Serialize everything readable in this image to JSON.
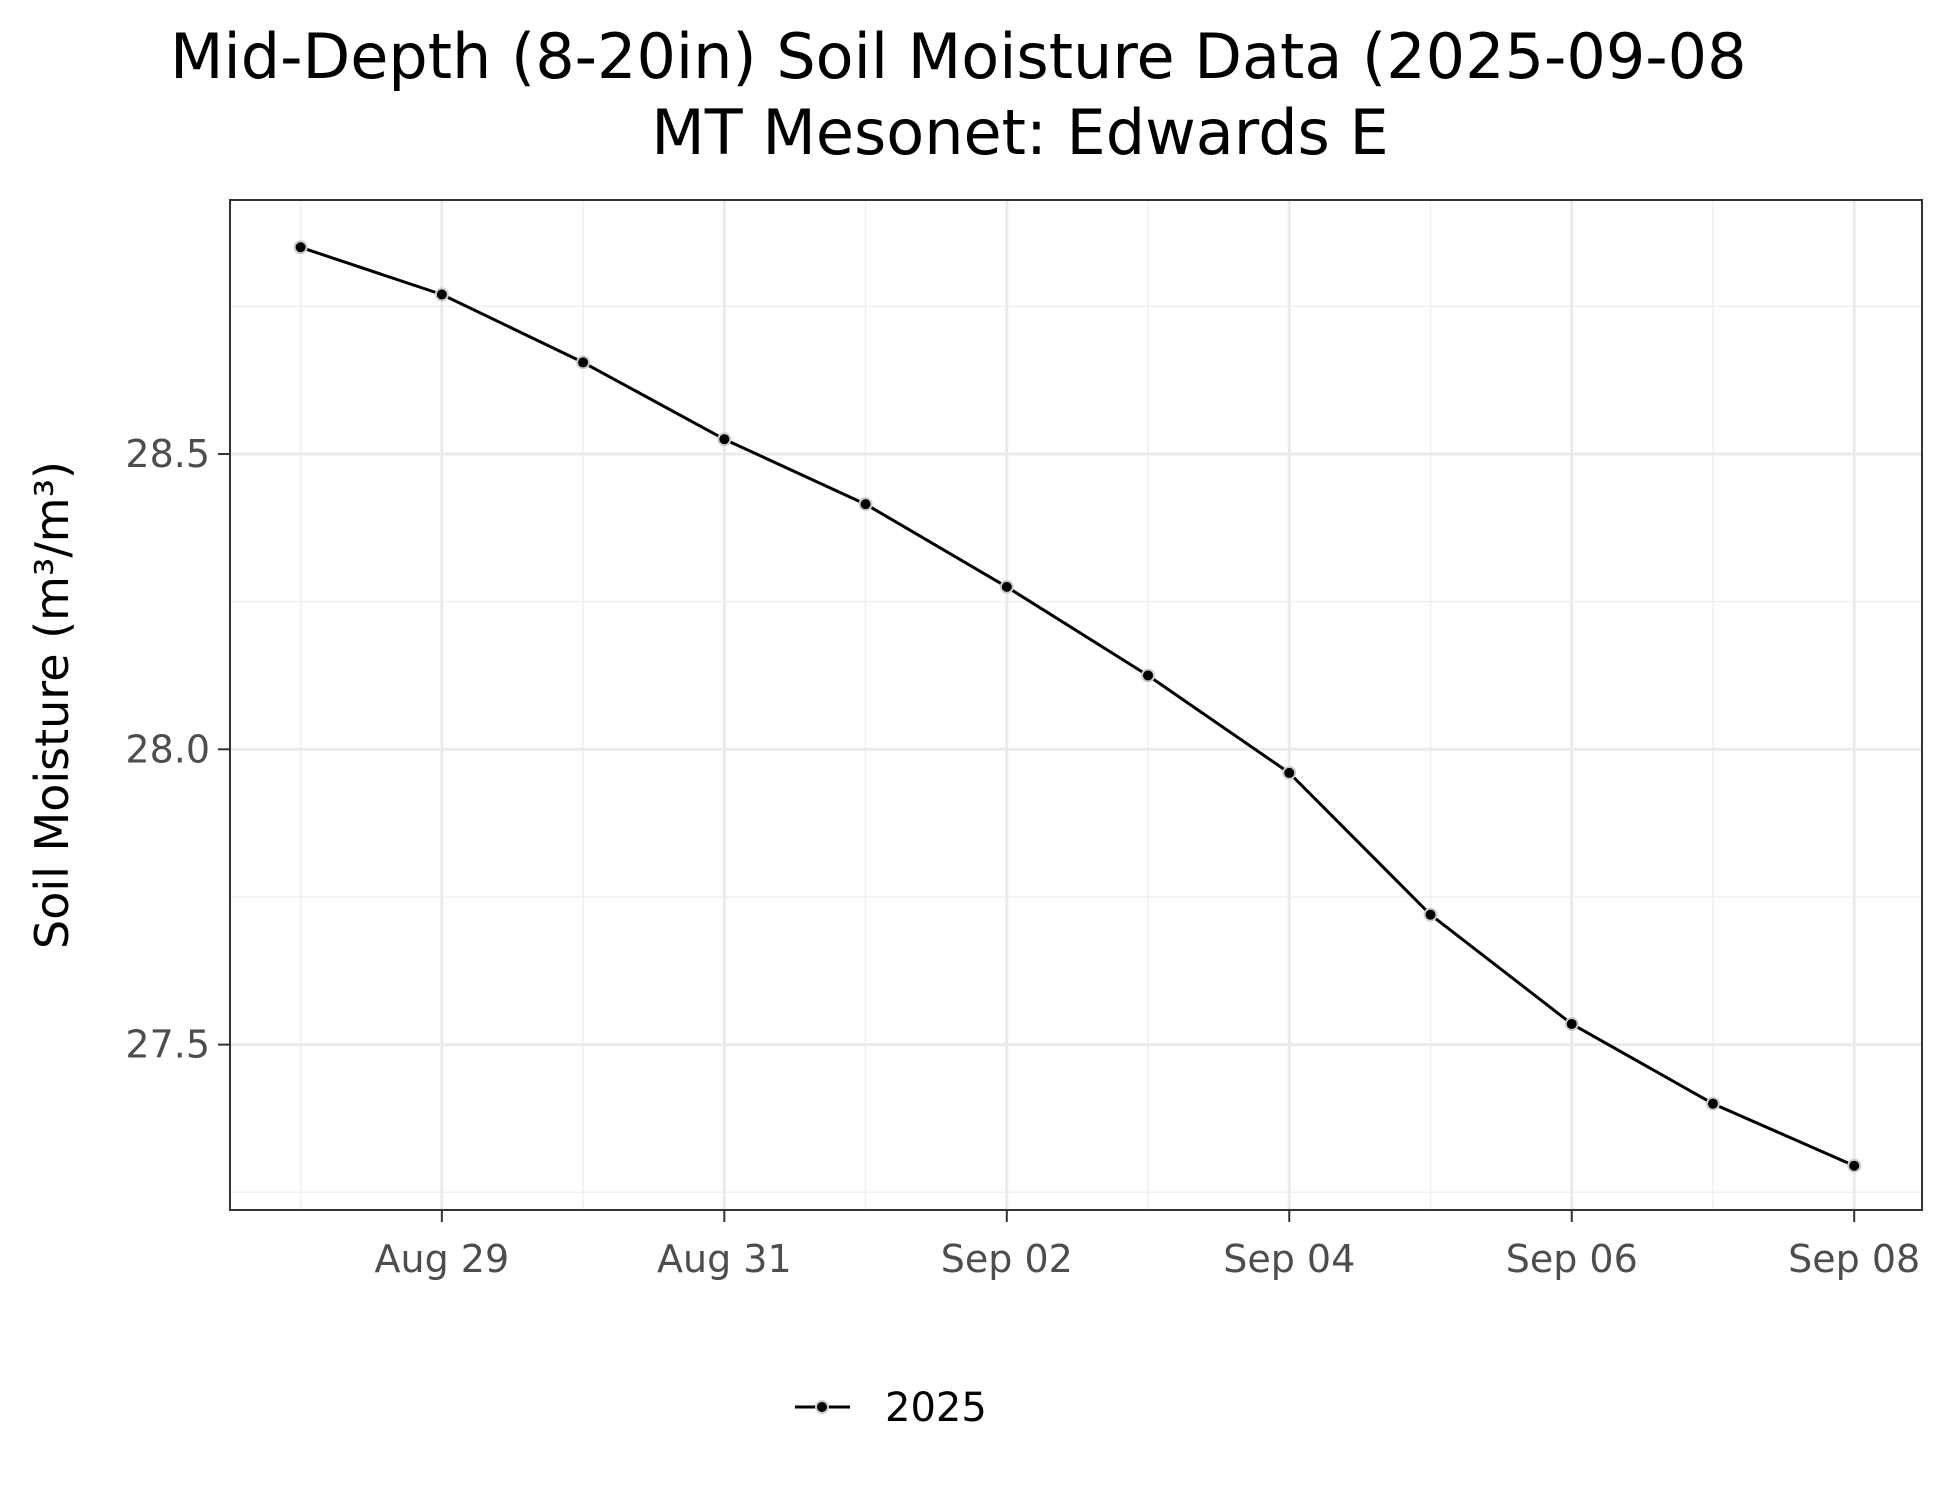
{
  "chart_data": {
    "type": "line",
    "title": "Mid-Depth (8-20in) Soil Moisture Data (2025-09-08",
    "subtitle": "MT Mesonet: Edwards E",
    "xlabel": "",
    "ylabel": "Soil Moisture (m³/m³)",
    "x": [
      "2025-08-28",
      "2025-08-29",
      "2025-08-30",
      "2025-08-31",
      "2025-09-01",
      "2025-09-02",
      "2025-09-03",
      "2025-09-04",
      "2025-09-05",
      "2025-09-06",
      "2025-09-07",
      "2025-09-08"
    ],
    "series": [
      {
        "name": "2025",
        "color": "#000000",
        "values": [
          28.85,
          28.77,
          28.655,
          28.525,
          28.415,
          28.275,
          28.125,
          27.96,
          27.72,
          27.535,
          27.4,
          27.295
        ]
      }
    ],
    "x_ticks": [
      {
        "value": "2025-08-29",
        "label": "Aug 29"
      },
      {
        "value": "2025-08-31",
        "label": "Aug 31"
      },
      {
        "value": "2025-09-02",
        "label": "Sep 02"
      },
      {
        "value": "2025-09-04",
        "label": "Sep 04"
      },
      {
        "value": "2025-09-06",
        "label": "Sep 06"
      },
      {
        "value": "2025-09-08",
        "label": "Sep 08"
      }
    ],
    "y_ticks": [
      {
        "value": 27.5,
        "label": "27.5"
      },
      {
        "value": 28.0,
        "label": "28.0"
      },
      {
        "value": 28.5,
        "label": "28.5"
      }
    ],
    "xlim": [
      "2025-08-27",
      "2025-09-08"
    ],
    "ylim": [
      27.22,
      28.93
    ],
    "grid": true,
    "legend_position": "bottom"
  }
}
